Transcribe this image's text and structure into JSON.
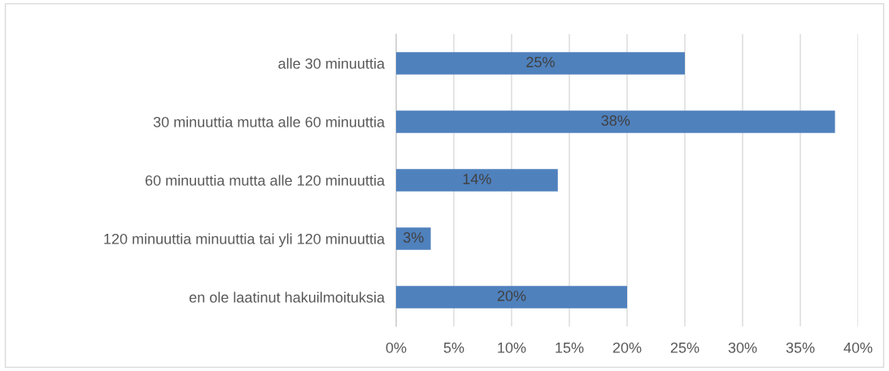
{
  "chart_data": {
    "type": "bar",
    "orientation": "horizontal",
    "categories": [
      "alle 30 minuuttia",
      "30 minuuttia mutta alle 60 minuuttia",
      "60 minuuttia mutta alle 120 minuuttia",
      "120 minuuttia minuuttia tai yli 120 minuuttia",
      "en ole laatinut hakuilmoituksia"
    ],
    "values": [
      25,
      38,
      14,
      3,
      20
    ],
    "value_labels": [
      "25%",
      "38%",
      "14%",
      "3%",
      "20%"
    ],
    "color": "#4f81bd",
    "xlim": [
      0,
      40
    ],
    "xticks": [
      {
        "value": 0,
        "label": "0%"
      },
      {
        "value": 5,
        "label": "5%"
      },
      {
        "value": 10,
        "label": "10%"
      },
      {
        "value": 15,
        "label": "15%"
      },
      {
        "value": 20,
        "label": "20%"
      },
      {
        "value": 25,
        "label": "25%"
      },
      {
        "value": 30,
        "label": "30%"
      },
      {
        "value": 35,
        "label": "35%"
      },
      {
        "value": 40,
        "label": "40%"
      }
    ],
    "grid": "x",
    "legend": false
  }
}
